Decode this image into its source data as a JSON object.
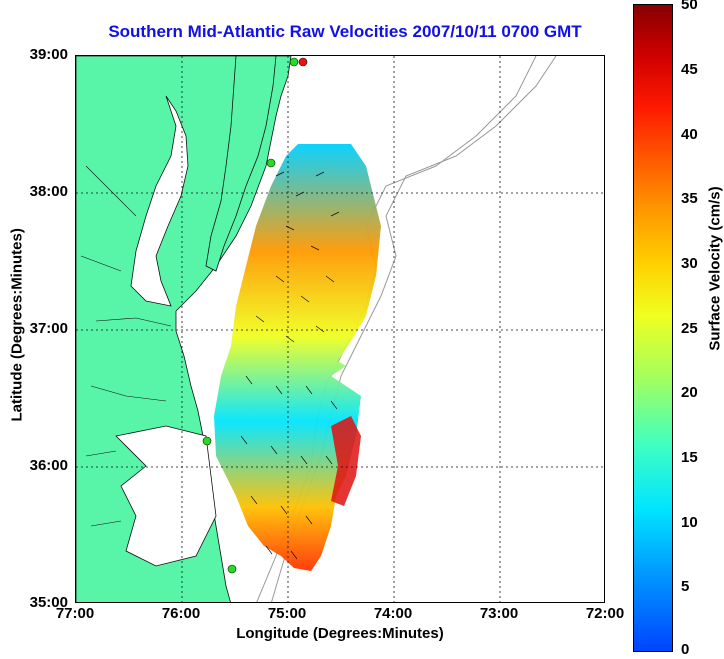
{
  "title": "Southern Mid-Atlantic Raw Velocities 2007/10/11 0700 GMT",
  "x_axis": {
    "label": "Longitude (Degrees:Minutes)",
    "ticks": [
      "77:00",
      "76:00",
      "75:00",
      "74:00",
      "73:00",
      "72:00"
    ]
  },
  "y_axis": {
    "label": "Latitude (Degrees:Minutes)",
    "ticks": [
      "39:00",
      "38:00",
      "37:00",
      "36:00",
      "35:00"
    ]
  },
  "colorbar": {
    "label": "Surface Velocity (cm/s)",
    "ticks": [
      "50",
      "45",
      "40",
      "35",
      "30",
      "25",
      "20",
      "15",
      "10",
      "5",
      "0"
    ],
    "range": [
      0,
      50
    ],
    "colormap": [
      "#0044ff",
      "#00e5ff",
      "#a0ff60",
      "#f0ff20",
      "#ff9900",
      "#ff1a00",
      "#880000"
    ]
  },
  "colors": {
    "land": "#58f5a8",
    "water": "#ffffff",
    "coastline": "#111111",
    "bathymetry": "#999999",
    "title": "#1010e8",
    "station_green": "#22dd22",
    "station_red": "#ee1111"
  },
  "grid": "dotted",
  "extent": {
    "lon": [
      -77,
      -72
    ],
    "lat": [
      35,
      39
    ]
  }
}
